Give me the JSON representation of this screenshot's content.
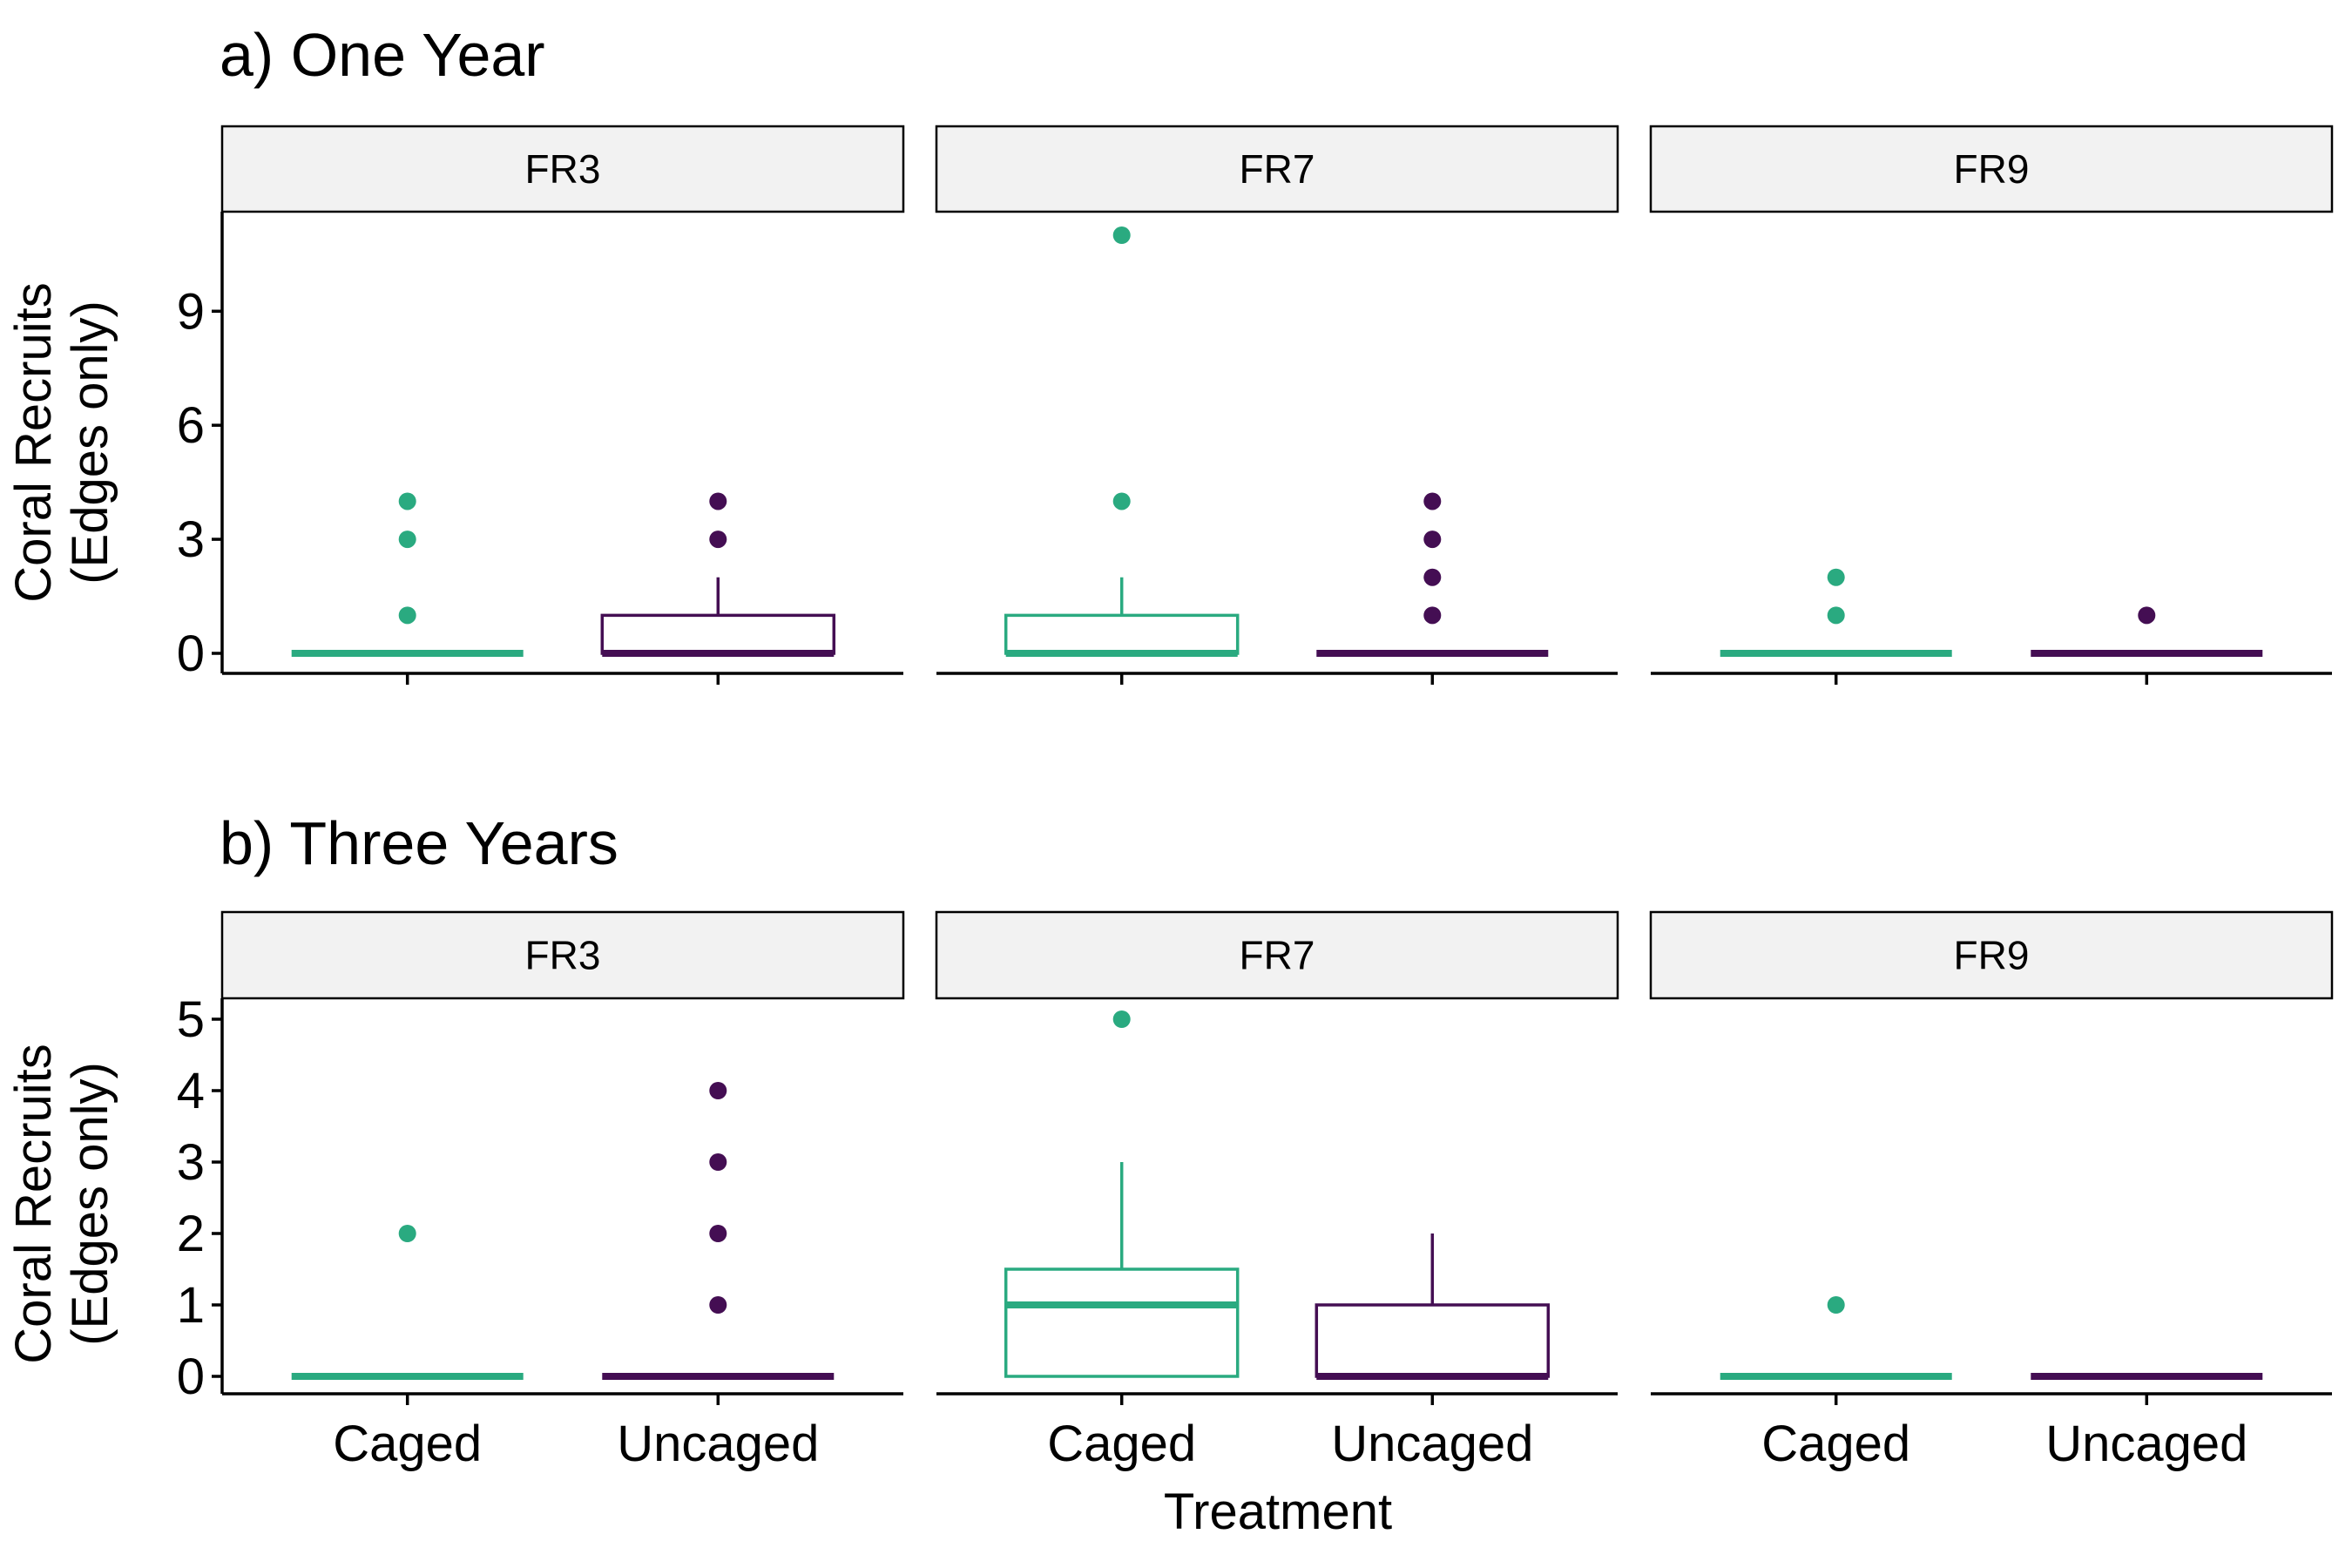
{
  "figure": {
    "x_axis_title": "Treatment",
    "y_axis_title": [
      "Coral Recruits",
      "(Edges only)"
    ],
    "colors": {
      "Caged": "#2aaa80",
      "Uncaged": "#440e53"
    }
  },
  "chart_data": [
    {
      "type": "box",
      "title": "a) One Year",
      "xlabel": "Treatment",
      "ylabel": "Coral Recruits (Edges only)",
      "categories": [
        "Caged",
        "Uncaged"
      ],
      "yticks": [
        0,
        3,
        6,
        9
      ],
      "ylim": [
        -0.5,
        11.5
      ],
      "facets": [
        {
          "label": "FR3",
          "boxes": [
            {
              "treatment": "Caged",
              "lower_whisker": 0,
              "q1": 0,
              "median": 0,
              "q3": 0,
              "upper_whisker": 0,
              "outliers": [
                1,
                3,
                4
              ]
            },
            {
              "treatment": "Uncaged",
              "lower_whisker": 0,
              "q1": 0,
              "median": 0,
              "q3": 1,
              "upper_whisker": 2,
              "outliers": [
                3,
                4
              ]
            }
          ]
        },
        {
          "label": "FR7",
          "boxes": [
            {
              "treatment": "Caged",
              "lower_whisker": 0,
              "q1": 0,
              "median": 0,
              "q3": 1,
              "upper_whisker": 2,
              "outliers": [
                4,
                11
              ]
            },
            {
              "treatment": "Uncaged",
              "lower_whisker": 0,
              "q1": 0,
              "median": 0,
              "q3": 0,
              "upper_whisker": 0,
              "outliers": [
                1,
                2,
                3,
                4
              ]
            }
          ]
        },
        {
          "label": "FR9",
          "boxes": [
            {
              "treatment": "Caged",
              "lower_whisker": 0,
              "q1": 0,
              "median": 0,
              "q3": 0,
              "upper_whisker": 0,
              "outliers": [
                1,
                2
              ]
            },
            {
              "treatment": "Uncaged",
              "lower_whisker": 0,
              "q1": 0,
              "median": 0,
              "q3": 0,
              "upper_whisker": 0,
              "outliers": [
                1
              ]
            }
          ]
        }
      ]
    },
    {
      "type": "box",
      "title": "b) Three Years",
      "xlabel": "Treatment",
      "ylabel": "Coral Recruits (Edges only)",
      "categories": [
        "Caged",
        "Uncaged"
      ],
      "yticks": [
        0,
        1,
        2,
        3,
        4,
        5
      ],
      "ylim": [
        -0.25,
        5.25
      ],
      "facets": [
        {
          "label": "FR3",
          "boxes": [
            {
              "treatment": "Caged",
              "lower_whisker": 0,
              "q1": 0,
              "median": 0,
              "q3": 0,
              "upper_whisker": 0,
              "outliers": [
                2
              ]
            },
            {
              "treatment": "Uncaged",
              "lower_whisker": 0,
              "q1": 0,
              "median": 0,
              "q3": 0,
              "upper_whisker": 0,
              "outliers": [
                1,
                2,
                3,
                4
              ]
            }
          ]
        },
        {
          "label": "FR7",
          "boxes": [
            {
              "treatment": "Caged",
              "lower_whisker": 0,
              "q1": 0,
              "median": 1,
              "q3": 1.5,
              "upper_whisker": 3,
              "outliers": [
                5
              ]
            },
            {
              "treatment": "Uncaged",
              "lower_whisker": 0,
              "q1": 0,
              "median": 0,
              "q3": 1,
              "upper_whisker": 2,
              "outliers": []
            }
          ]
        },
        {
          "label": "FR9",
          "boxes": [
            {
              "treatment": "Caged",
              "lower_whisker": 0,
              "q1": 0,
              "median": 0,
              "q3": 0,
              "upper_whisker": 0,
              "outliers": [
                1
              ]
            },
            {
              "treatment": "Uncaged",
              "lower_whisker": 0,
              "q1": 0,
              "median": 0,
              "q3": 0,
              "upper_whisker": 0,
              "outliers": []
            }
          ]
        }
      ]
    }
  ]
}
